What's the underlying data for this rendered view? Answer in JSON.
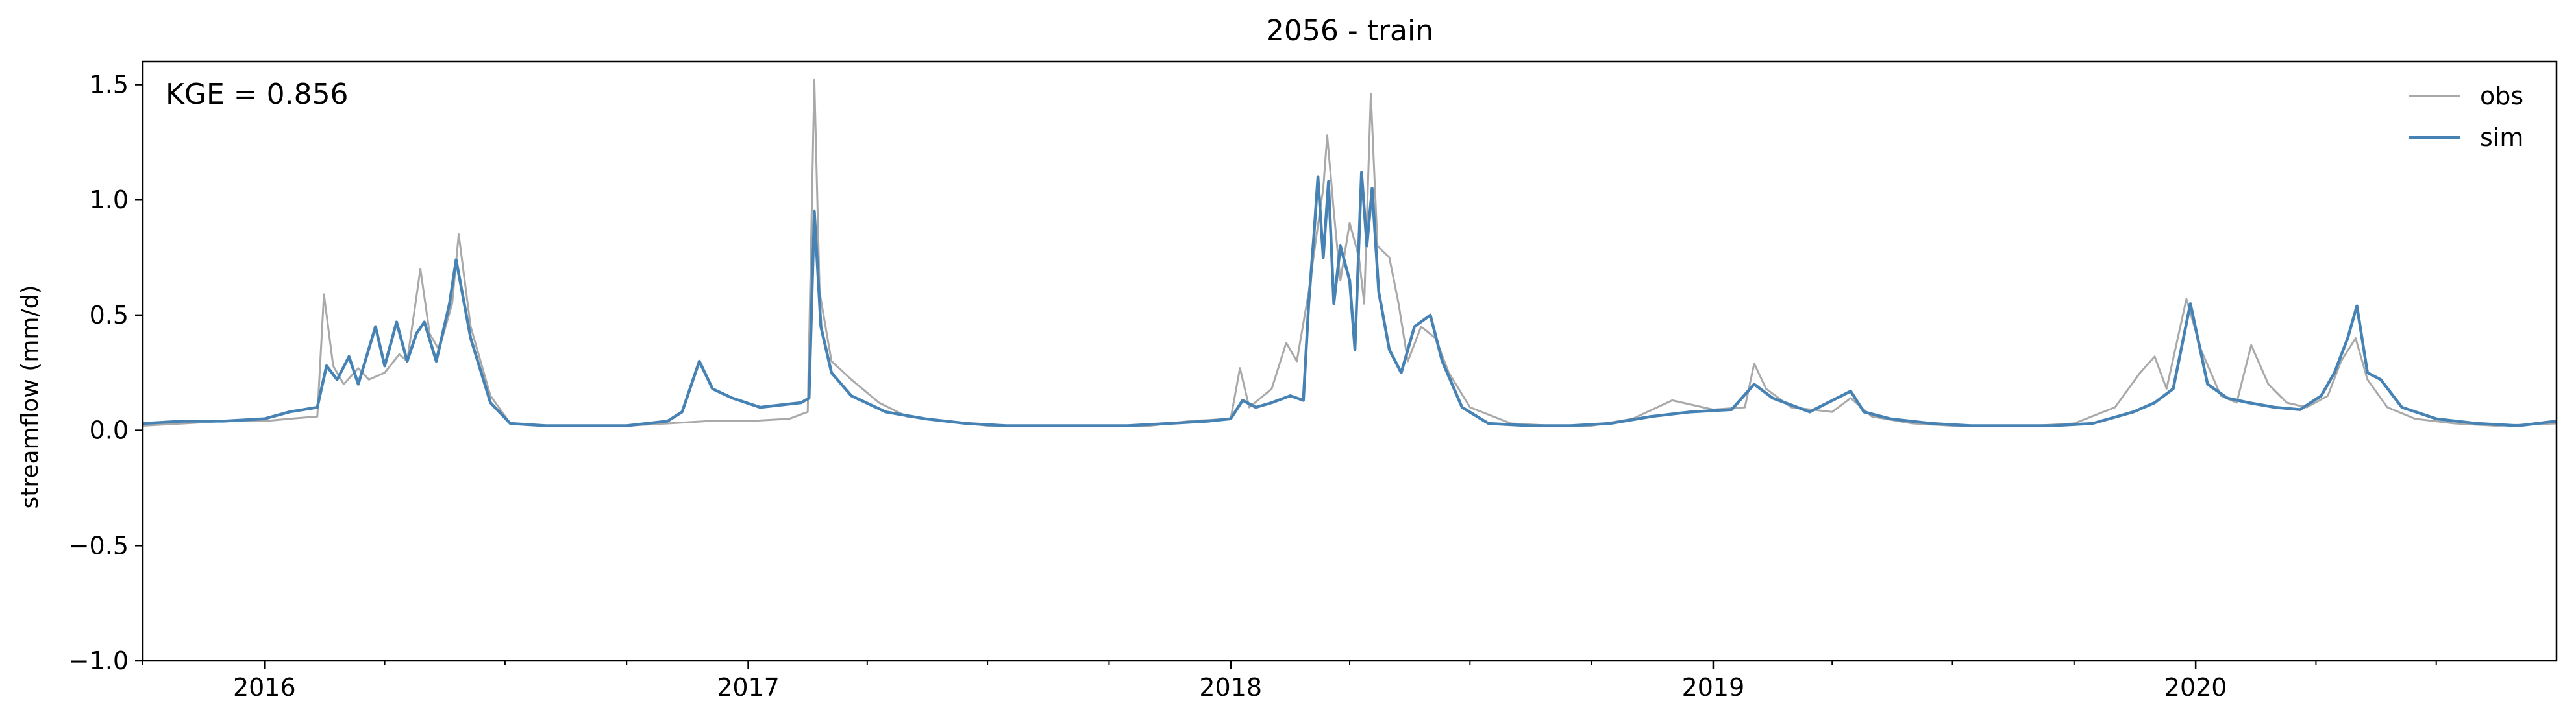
{
  "chart_data": {
    "type": "line",
    "title": "2056 - train",
    "xlabel": "",
    "ylabel": "streamflow (mm/d)",
    "annotation": "KGE = 0.856",
    "xlim": [
      "2015-10-01",
      "2020-09-30"
    ],
    "ylim": [
      -1.0,
      1.6
    ],
    "yticks": [
      -1.0,
      -0.5,
      0.0,
      0.5,
      1.0,
      1.5
    ],
    "ytick_labels": [
      "−1.0",
      "−0.5",
      "0.0",
      "0.5",
      "1.0",
      "1.5"
    ],
    "xticks": [
      "2016-01-01",
      "2017-01-01",
      "2018-01-01",
      "2019-01-01",
      "2020-01-01"
    ],
    "xtick_labels": [
      "2016",
      "2017",
      "2018",
      "2019",
      "2020"
    ],
    "grid": false,
    "legend_position": "top-right",
    "series": [
      {
        "name": "obs",
        "color": "#a9a9a9",
        "points": [
          [
            "2015-10-01",
            0.02
          ],
          [
            "2015-11-01",
            0.03
          ],
          [
            "2015-12-01",
            0.04
          ],
          [
            "2016-01-01",
            0.04
          ],
          [
            "2016-01-20",
            0.05
          ],
          [
            "2016-02-10",
            0.06
          ],
          [
            "2016-02-15",
            0.59
          ],
          [
            "2016-02-22",
            0.28
          ],
          [
            "2016-03-01",
            0.2
          ],
          [
            "2016-03-12",
            0.27
          ],
          [
            "2016-03-20",
            0.22
          ],
          [
            "2016-04-01",
            0.25
          ],
          [
            "2016-04-12",
            0.33
          ],
          [
            "2016-04-18",
            0.3
          ],
          [
            "2016-04-28",
            0.7
          ],
          [
            "2016-05-05",
            0.42
          ],
          [
            "2016-05-12",
            0.35
          ],
          [
            "2016-05-22",
            0.55
          ],
          [
            "2016-05-27",
            0.85
          ],
          [
            "2016-06-05",
            0.45
          ],
          [
            "2016-06-20",
            0.15
          ],
          [
            "2016-07-05",
            0.03
          ],
          [
            "2016-08-01",
            0.02
          ],
          [
            "2016-09-01",
            0.02
          ],
          [
            "2016-10-01",
            0.02
          ],
          [
            "2016-11-01",
            0.03
          ],
          [
            "2016-12-01",
            0.04
          ],
          [
            "2017-01-01",
            0.04
          ],
          [
            "2017-02-01",
            0.05
          ],
          [
            "2017-02-15",
            0.08
          ],
          [
            "2017-02-20",
            1.52
          ],
          [
            "2017-02-24",
            0.6
          ],
          [
            "2017-03-05",
            0.3
          ],
          [
            "2017-03-20",
            0.22
          ],
          [
            "2017-04-10",
            0.12
          ],
          [
            "2017-05-01",
            0.06
          ],
          [
            "2017-06-01",
            0.04
          ],
          [
            "2017-07-01",
            0.02
          ],
          [
            "2017-08-01",
            0.02
          ],
          [
            "2017-09-01",
            0.02
          ],
          [
            "2017-10-01",
            0.02
          ],
          [
            "2017-11-01",
            0.02
          ],
          [
            "2017-12-01",
            0.04
          ],
          [
            "2018-01-01",
            0.05
          ],
          [
            "2018-01-08",
            0.27
          ],
          [
            "2018-01-15",
            0.1
          ],
          [
            "2018-02-01",
            0.18
          ],
          [
            "2018-02-12",
            0.38
          ],
          [
            "2018-02-20",
            0.3
          ],
          [
            "2018-03-01",
            0.6
          ],
          [
            "2018-03-07",
            0.85
          ],
          [
            "2018-03-12",
            1.05
          ],
          [
            "2018-03-15",
            1.28
          ],
          [
            "2018-03-20",
            0.95
          ],
          [
            "2018-03-25",
            0.65
          ],
          [
            "2018-04-01",
            0.9
          ],
          [
            "2018-04-08",
            0.75
          ],
          [
            "2018-04-12",
            0.55
          ],
          [
            "2018-04-17",
            1.46
          ],
          [
            "2018-04-22",
            0.8
          ],
          [
            "2018-05-01",
            0.75
          ],
          [
            "2018-05-08",
            0.55
          ],
          [
            "2018-05-15",
            0.3
          ],
          [
            "2018-05-25",
            0.45
          ],
          [
            "2018-06-05",
            0.4
          ],
          [
            "2018-06-15",
            0.25
          ],
          [
            "2018-07-01",
            0.1
          ],
          [
            "2018-08-01",
            0.03
          ],
          [
            "2018-09-01",
            0.02
          ],
          [
            "2018-10-01",
            0.02
          ],
          [
            "2018-11-01",
            0.05
          ],
          [
            "2018-12-01",
            0.13
          ],
          [
            "2019-01-01",
            0.09
          ],
          [
            "2019-01-25",
            0.1
          ],
          [
            "2019-02-01",
            0.29
          ],
          [
            "2019-02-10",
            0.18
          ],
          [
            "2019-03-01",
            0.1
          ],
          [
            "2019-04-01",
            0.08
          ],
          [
            "2019-04-15",
            0.14
          ],
          [
            "2019-05-01",
            0.06
          ],
          [
            "2019-06-01",
            0.03
          ],
          [
            "2019-07-01",
            0.02
          ],
          [
            "2019-08-01",
            0.02
          ],
          [
            "2019-09-01",
            0.02
          ],
          [
            "2019-10-01",
            0.03
          ],
          [
            "2019-11-01",
            0.1
          ],
          [
            "2019-11-20",
            0.25
          ],
          [
            "2019-12-01",
            0.32
          ],
          [
            "2019-12-10",
            0.18
          ],
          [
            "2019-12-25",
            0.57
          ],
          [
            "2020-01-05",
            0.35
          ],
          [
            "2020-01-20",
            0.15
          ],
          [
            "2020-02-01",
            0.12
          ],
          [
            "2020-02-12",
            0.37
          ],
          [
            "2020-02-25",
            0.2
          ],
          [
            "2020-03-10",
            0.12
          ],
          [
            "2020-03-25",
            0.1
          ],
          [
            "2020-04-10",
            0.15
          ],
          [
            "2020-04-20",
            0.3
          ],
          [
            "2020-05-01",
            0.4
          ],
          [
            "2020-05-10",
            0.22
          ],
          [
            "2020-05-25",
            0.1
          ],
          [
            "2020-06-15",
            0.05
          ],
          [
            "2020-07-15",
            0.03
          ],
          [
            "2020-08-15",
            0.02
          ],
          [
            "2020-09-30",
            0.03
          ]
        ]
      },
      {
        "name": "sim",
        "color": "#4682b4",
        "points": [
          [
            "2015-10-01",
            0.03
          ],
          [
            "2015-11-01",
            0.04
          ],
          [
            "2015-12-01",
            0.04
          ],
          [
            "2016-01-01",
            0.05
          ],
          [
            "2016-01-20",
            0.08
          ],
          [
            "2016-02-10",
            0.1
          ],
          [
            "2016-02-17",
            0.28
          ],
          [
            "2016-02-25",
            0.22
          ],
          [
            "2016-03-05",
            0.32
          ],
          [
            "2016-03-12",
            0.2
          ],
          [
            "2016-03-25",
            0.45
          ],
          [
            "2016-04-01",
            0.28
          ],
          [
            "2016-04-10",
            0.47
          ],
          [
            "2016-04-18",
            0.3
          ],
          [
            "2016-04-25",
            0.42
          ],
          [
            "2016-05-01",
            0.47
          ],
          [
            "2016-05-10",
            0.3
          ],
          [
            "2016-05-20",
            0.55
          ],
          [
            "2016-05-25",
            0.74
          ],
          [
            "2016-06-05",
            0.4
          ],
          [
            "2016-06-20",
            0.12
          ],
          [
            "2016-07-05",
            0.03
          ],
          [
            "2016-08-01",
            0.02
          ],
          [
            "2016-09-01",
            0.02
          ],
          [
            "2016-10-01",
            0.02
          ],
          [
            "2016-11-01",
            0.04
          ],
          [
            "2016-11-12",
            0.08
          ],
          [
            "2016-11-25",
            0.3
          ],
          [
            "2016-12-05",
            0.18
          ],
          [
            "2016-12-20",
            0.14
          ],
          [
            "2017-01-10",
            0.1
          ],
          [
            "2017-02-10",
            0.12
          ],
          [
            "2017-02-16",
            0.14
          ],
          [
            "2017-02-20",
            0.95
          ],
          [
            "2017-02-25",
            0.45
          ],
          [
            "2017-03-05",
            0.25
          ],
          [
            "2017-03-20",
            0.15
          ],
          [
            "2017-04-15",
            0.08
          ],
          [
            "2017-05-15",
            0.05
          ],
          [
            "2017-06-15",
            0.03
          ],
          [
            "2017-07-15",
            0.02
          ],
          [
            "2017-08-15",
            0.02
          ],
          [
            "2017-09-15",
            0.02
          ],
          [
            "2017-10-15",
            0.02
          ],
          [
            "2017-11-15",
            0.03
          ],
          [
            "2017-12-15",
            0.04
          ],
          [
            "2018-01-01",
            0.05
          ],
          [
            "2018-01-10",
            0.13
          ],
          [
            "2018-01-20",
            0.1
          ],
          [
            "2018-02-01",
            0.12
          ],
          [
            "2018-02-15",
            0.15
          ],
          [
            "2018-02-25",
            0.13
          ],
          [
            "2018-03-01",
            0.55
          ],
          [
            "2018-03-05",
            0.85
          ],
          [
            "2018-03-08",
            1.1
          ],
          [
            "2018-03-12",
            0.75
          ],
          [
            "2018-03-16",
            1.08
          ],
          [
            "2018-03-20",
            0.55
          ],
          [
            "2018-03-25",
            0.8
          ],
          [
            "2018-04-01",
            0.65
          ],
          [
            "2018-04-05",
            0.35
          ],
          [
            "2018-04-10",
            1.12
          ],
          [
            "2018-04-14",
            0.8
          ],
          [
            "2018-04-18",
            1.05
          ],
          [
            "2018-04-23",
            0.6
          ],
          [
            "2018-05-01",
            0.35
          ],
          [
            "2018-05-10",
            0.25
          ],
          [
            "2018-05-20",
            0.45
          ],
          [
            "2018-06-01",
            0.5
          ],
          [
            "2018-06-10",
            0.3
          ],
          [
            "2018-06-25",
            0.1
          ],
          [
            "2018-07-15",
            0.03
          ],
          [
            "2018-08-15",
            0.02
          ],
          [
            "2018-09-15",
            0.02
          ],
          [
            "2018-10-15",
            0.03
          ],
          [
            "2018-11-15",
            0.06
          ],
          [
            "2018-12-15",
            0.08
          ],
          [
            "2019-01-15",
            0.09
          ],
          [
            "2019-02-01",
            0.2
          ],
          [
            "2019-02-15",
            0.14
          ],
          [
            "2019-03-15",
            0.08
          ],
          [
            "2019-04-15",
            0.17
          ],
          [
            "2019-04-25",
            0.08
          ],
          [
            "2019-05-15",
            0.05
          ],
          [
            "2019-06-15",
            0.03
          ],
          [
            "2019-07-15",
            0.02
          ],
          [
            "2019-08-15",
            0.02
          ],
          [
            "2019-09-15",
            0.02
          ],
          [
            "2019-10-15",
            0.03
          ],
          [
            "2019-11-15",
            0.08
          ],
          [
            "2019-12-01",
            0.12
          ],
          [
            "2019-12-15",
            0.18
          ],
          [
            "2019-12-28",
            0.55
          ],
          [
            "2020-01-10",
            0.2
          ],
          [
            "2020-01-25",
            0.14
          ],
          [
            "2020-02-10",
            0.12
          ],
          [
            "2020-03-01",
            0.1
          ],
          [
            "2020-03-20",
            0.09
          ],
          [
            "2020-04-05",
            0.15
          ],
          [
            "2020-04-15",
            0.25
          ],
          [
            "2020-04-25",
            0.4
          ],
          [
            "2020-05-02",
            0.54
          ],
          [
            "2020-05-10",
            0.25
          ],
          [
            "2020-05-20",
            0.22
          ],
          [
            "2020-06-05",
            0.1
          ],
          [
            "2020-07-01",
            0.05
          ],
          [
            "2020-08-01",
            0.03
          ],
          [
            "2020-09-01",
            0.02
          ],
          [
            "2020-09-30",
            0.04
          ]
        ]
      }
    ]
  }
}
